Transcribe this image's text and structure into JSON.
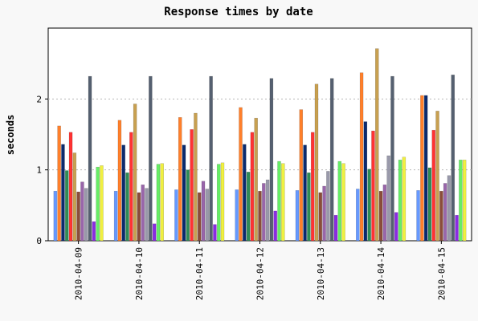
{
  "chart_data": {
    "type": "bar",
    "title": "Response times by date",
    "xlabel": "",
    "ylabel": "seconds",
    "ylim": [
      0,
      3.0
    ],
    "yticks": [
      0,
      1,
      2
    ],
    "grid": true,
    "legend": "none",
    "categories": [
      "2010-04-09",
      "2010-04-10",
      "2010-04-11",
      "2010-04-12",
      "2010-04-13",
      "2010-04-14",
      "2010-04-15"
    ],
    "series": [
      {
        "color": "#6699ff",
        "values": [
          0.7,
          0.7,
          0.72,
          0.72,
          0.71,
          0.73,
          0.71
        ]
      },
      {
        "color": "#ff7f2a",
        "values": [
          1.62,
          1.7,
          1.74,
          1.88,
          1.85,
          2.37,
          2.05
        ]
      },
      {
        "color": "#0a2a6e",
        "values": [
          1.36,
          1.35,
          1.35,
          1.36,
          1.35,
          1.68,
          2.05
        ]
      },
      {
        "color": "#2e8b57",
        "values": [
          0.99,
          0.96,
          1.0,
          0.97,
          0.96,
          1.01,
          1.03
        ]
      },
      {
        "color": "#ff3333",
        "values": [
          1.53,
          1.53,
          1.57,
          1.53,
          1.53,
          1.55,
          1.56
        ]
      },
      {
        "color": "#c8a050",
        "values": [
          1.24,
          1.93,
          1.8,
          1.73,
          2.21,
          2.71,
          1.83
        ]
      },
      {
        "color": "#8b4c39",
        "values": [
          0.69,
          0.68,
          0.68,
          0.7,
          0.68,
          0.7,
          0.7
        ]
      },
      {
        "color": "#9966aa",
        "values": [
          0.83,
          0.79,
          0.84,
          0.81,
          0.77,
          0.79,
          0.81
        ]
      },
      {
        "color": "#9999aa",
        "values": [
          0.74,
          0.74,
          0.73,
          0.86,
          0.98,
          1.2,
          0.92
        ]
      },
      {
        "color": "#556070",
        "values": [
          2.32,
          2.32,
          2.32,
          2.29,
          2.29,
          2.32,
          2.34
        ]
      },
      {
        "color": "#8a2be2",
        "values": [
          0.27,
          0.24,
          0.23,
          0.42,
          0.36,
          0.4,
          0.36
        ]
      },
      {
        "color": "#66ee66",
        "values": [
          1.04,
          1.08,
          1.08,
          1.12,
          1.12,
          1.14,
          1.14
        ]
      },
      {
        "color": "#f0f040",
        "values": [
          1.06,
          1.09,
          1.1,
          1.09,
          1.09,
          1.18,
          1.14
        ]
      }
    ]
  }
}
